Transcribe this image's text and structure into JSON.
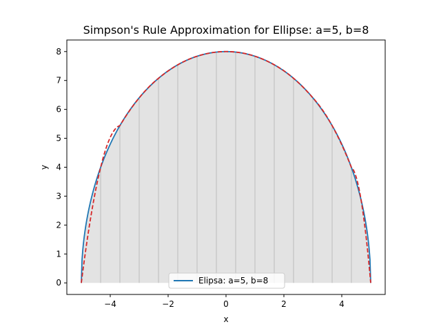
{
  "chart_data": {
    "type": "line",
    "title": "Simpson's Rule Approximation for Ellipse: a=5, b=8",
    "xlabel": "x",
    "ylabel": "y",
    "xlim": [
      -5.5,
      5.5
    ],
    "ylim": [
      -0.4,
      8.4
    ],
    "xticks": [
      -4,
      -2,
      0,
      2,
      4
    ],
    "yticks": [
      0,
      1,
      2,
      3,
      4,
      5,
      6,
      7,
      8
    ],
    "xtick_labels": [
      "−4",
      "−2",
      "0",
      "2",
      "4"
    ],
    "ytick_labels": [
      "0",
      "1",
      "2",
      "3",
      "4",
      "5",
      "6",
      "7",
      "8"
    ],
    "ellipse": {
      "a": 5,
      "b": 8
    },
    "simpson_nodes": [
      -5,
      -4.333,
      -3.667,
      -3,
      -2.333,
      -1.667,
      -1,
      -0.333,
      0.333,
      1,
      1.667,
      2.333,
      3,
      3.667,
      4.333,
      5
    ],
    "series": [
      {
        "name": "Elipsa: a=5, b=8",
        "color": "#1f77b4",
        "style": "solid"
      },
      {
        "color": "#d62728",
        "style": "dashed"
      }
    ],
    "fill_color": "#e3e3e3",
    "strip_line_color": "#bdbdbd",
    "legend_position": "lower center",
    "grid": false
  }
}
